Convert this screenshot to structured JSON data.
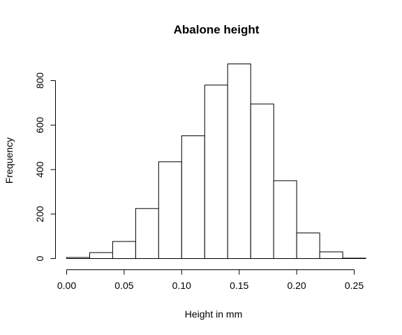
{
  "chart_data": {
    "type": "bar",
    "title": "Abalone height",
    "xlabel": "Height in mm",
    "ylabel": "Frequency",
    "xlim": [
      0.0,
      0.26
    ],
    "ylim": [
      0,
      880
    ],
    "x_ticks": [
      "0.00",
      "0.05",
      "0.10",
      "0.15",
      "0.20",
      "0.25"
    ],
    "x_tick_values": [
      0.0,
      0.05,
      0.1,
      0.15,
      0.2,
      0.25
    ],
    "y_ticks": [
      "0",
      "200",
      "400",
      "600",
      "800"
    ],
    "y_tick_values": [
      0,
      200,
      400,
      600,
      800
    ],
    "bins": [
      {
        "start": 0.0,
        "end": 0.02,
        "count": 5
      },
      {
        "start": 0.02,
        "end": 0.04,
        "count": 27
      },
      {
        "start": 0.04,
        "end": 0.06,
        "count": 77
      },
      {
        "start": 0.06,
        "end": 0.08,
        "count": 225
      },
      {
        "start": 0.08,
        "end": 0.1,
        "count": 435
      },
      {
        "start": 0.1,
        "end": 0.12,
        "count": 552
      },
      {
        "start": 0.12,
        "end": 0.14,
        "count": 780
      },
      {
        "start": 0.14,
        "end": 0.16,
        "count": 875
      },
      {
        "start": 0.16,
        "end": 0.18,
        "count": 695
      },
      {
        "start": 0.18,
        "end": 0.2,
        "count": 350
      },
      {
        "start": 0.2,
        "end": 0.22,
        "count": 115
      },
      {
        "start": 0.22,
        "end": 0.24,
        "count": 30
      },
      {
        "start": 0.24,
        "end": 0.26,
        "count": 2
      }
    ],
    "grid": false,
    "legend": "none"
  }
}
